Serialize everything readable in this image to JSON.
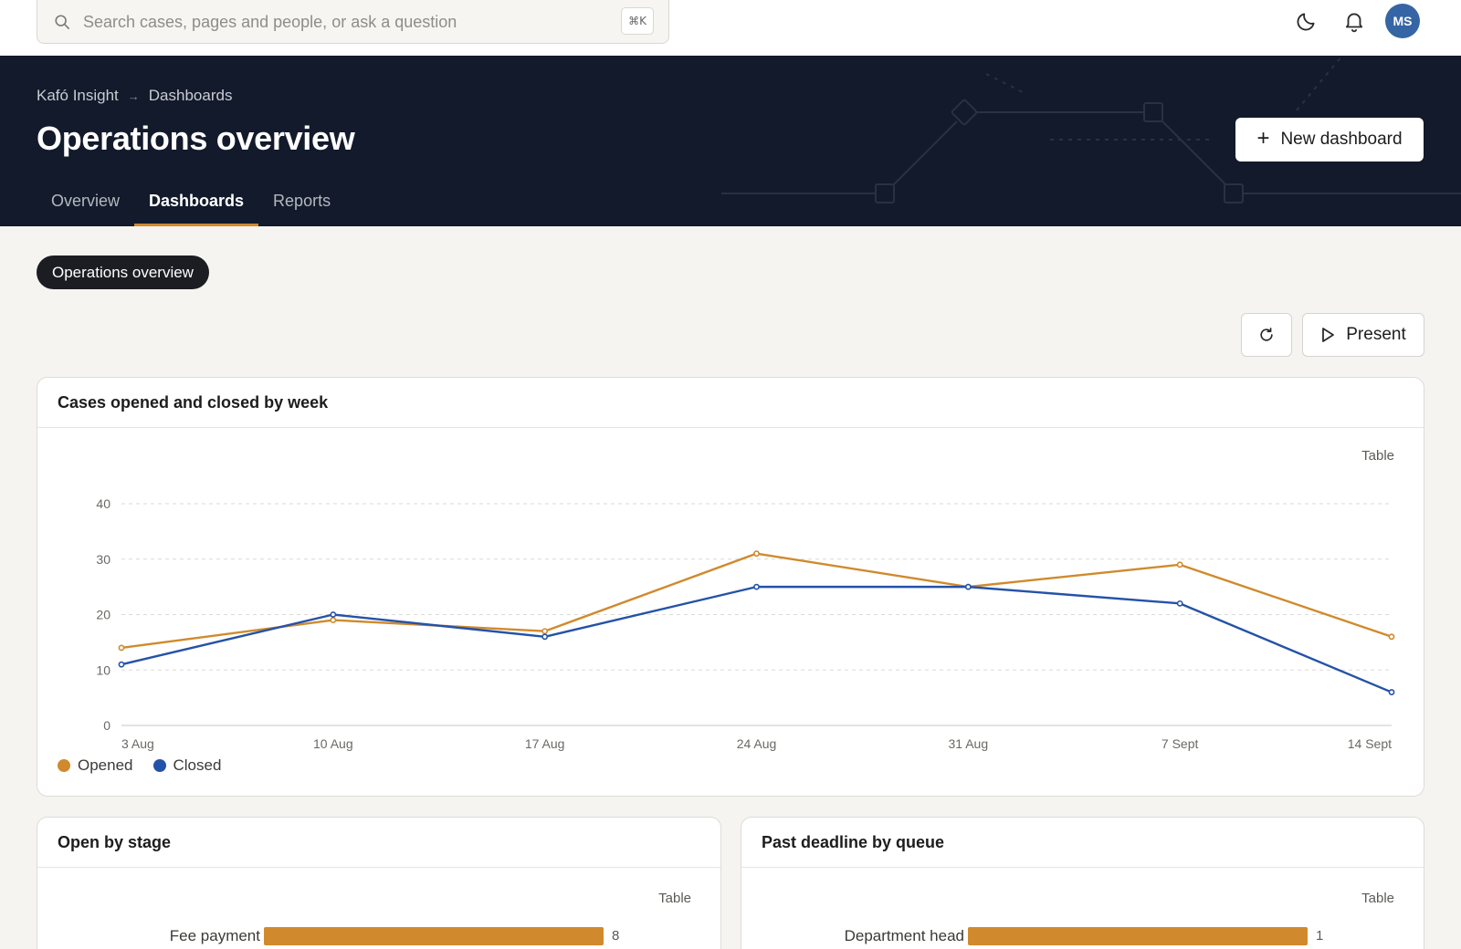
{
  "search": {
    "placeholder": "Search cases, pages and people, or ask a question",
    "shortcut": "⌘K"
  },
  "user": {
    "initials": "MS"
  },
  "breadcrumb": {
    "items": [
      "Kafó Insight",
      "Dashboards"
    ],
    "separator": "→"
  },
  "page": {
    "title": "Operations overview"
  },
  "header": {
    "new_dashboard_label": "New dashboard"
  },
  "tabs": [
    {
      "label": "Overview",
      "active": false
    },
    {
      "label": "Dashboards",
      "active": true
    },
    {
      "label": "Reports",
      "active": false
    }
  ],
  "dashboard_pill": "Operations overview",
  "toolbar": {
    "present_label": "Present",
    "refresh_icon": "refresh-icon"
  },
  "colors": {
    "accent": "#d08a2d",
    "opened": "#d08a2d",
    "closed": "#2452a8",
    "hero_bg": "#121a2b"
  },
  "cards": {
    "main": {
      "title": "Cases opened and closed by week",
      "table_label": "Table"
    },
    "open_by_stage": {
      "title": "Open by stage",
      "table_label": "Table",
      "rows": [
        {
          "label": "Fee payment",
          "value": 8
        }
      ]
    },
    "past_deadline": {
      "title": "Past deadline by queue",
      "table_label": "Table",
      "rows": [
        {
          "label": "Department head",
          "value": 1
        }
      ]
    }
  },
  "chart_data": {
    "type": "line",
    "title": "Cases opened and closed by week",
    "categories": [
      "3 Aug",
      "10 Aug",
      "17 Aug",
      "24 Aug",
      "31 Aug",
      "7 Sept",
      "14 Sept"
    ],
    "series": [
      {
        "name": "Opened",
        "color": "#d08a2d",
        "values": [
          14,
          19,
          17,
          31,
          25,
          29,
          16
        ]
      },
      {
        "name": "Closed",
        "color": "#2452a8",
        "values": [
          11,
          20,
          16,
          25,
          25,
          22,
          6
        ]
      }
    ],
    "ylim": [
      0,
      40
    ],
    "yticks": [
      0,
      10,
      20,
      30,
      40
    ],
    "grid": true,
    "legend": "bottom-left"
  }
}
